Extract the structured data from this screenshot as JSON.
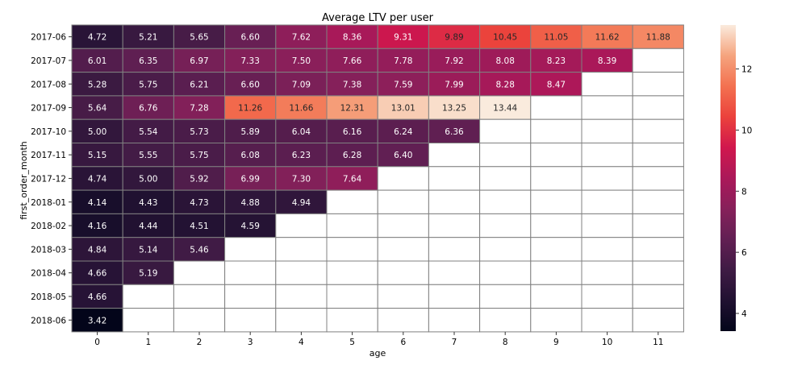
{
  "chart_data": {
    "type": "heatmap",
    "title": "Average LTV per user",
    "xlabel": "age",
    "ylabel": "first_order_month",
    "x": [
      "0",
      "1",
      "2",
      "3",
      "4",
      "5",
      "6",
      "7",
      "8",
      "9",
      "10",
      "11"
    ],
    "y": [
      "2017-06",
      "2017-07",
      "2017-08",
      "2017-09",
      "2017-10",
      "2017-11",
      "2017-12",
      "2018-01",
      "2018-02",
      "2018-03",
      "2018-04",
      "2018-05",
      "2018-06"
    ],
    "values": [
      [
        4.72,
        5.21,
        5.65,
        6.6,
        7.62,
        8.36,
        9.31,
        9.89,
        10.45,
        11.05,
        11.62,
        11.88
      ],
      [
        6.01,
        6.35,
        6.97,
        7.33,
        7.5,
        7.66,
        7.78,
        7.92,
        8.08,
        8.23,
        8.39,
        null
      ],
      [
        5.28,
        5.75,
        6.21,
        6.6,
        7.09,
        7.38,
        7.59,
        7.99,
        8.28,
        8.47,
        null,
        null
      ],
      [
        5.64,
        6.76,
        7.28,
        11.26,
        11.66,
        12.31,
        13.01,
        13.25,
        13.44,
        null,
        null,
        null
      ],
      [
        5.0,
        5.54,
        5.73,
        5.89,
        6.04,
        6.16,
        6.24,
        6.36,
        null,
        null,
        null,
        null
      ],
      [
        5.15,
        5.55,
        5.75,
        6.08,
        6.23,
        6.28,
        6.4,
        null,
        null,
        null,
        null,
        null
      ],
      [
        4.74,
        5.0,
        5.92,
        6.99,
        7.3,
        7.64,
        null,
        null,
        null,
        null,
        null,
        null
      ],
      [
        4.14,
        4.43,
        4.73,
        4.88,
        4.94,
        null,
        null,
        null,
        null,
        null,
        null,
        null
      ],
      [
        4.16,
        4.44,
        4.51,
        4.59,
        null,
        null,
        null,
        null,
        null,
        null,
        null,
        null
      ],
      [
        4.84,
        5.14,
        5.46,
        null,
        null,
        null,
        null,
        null,
        null,
        null,
        null,
        null
      ],
      [
        4.66,
        5.19,
        null,
        null,
        null,
        null,
        null,
        null,
        null,
        null,
        null,
        null
      ],
      [
        4.66,
        null,
        null,
        null,
        null,
        null,
        null,
        null,
        null,
        null,
        null,
        null
      ],
      [
        3.42,
        null,
        null,
        null,
        null,
        null,
        null,
        null,
        null,
        null,
        null,
        null
      ]
    ],
    "colormap": "rocket",
    "vmin": 3.42,
    "vmax": 13.44,
    "colorbar_ticks": [
      4,
      6,
      8,
      10,
      12
    ],
    "grid_color": "#808080"
  }
}
